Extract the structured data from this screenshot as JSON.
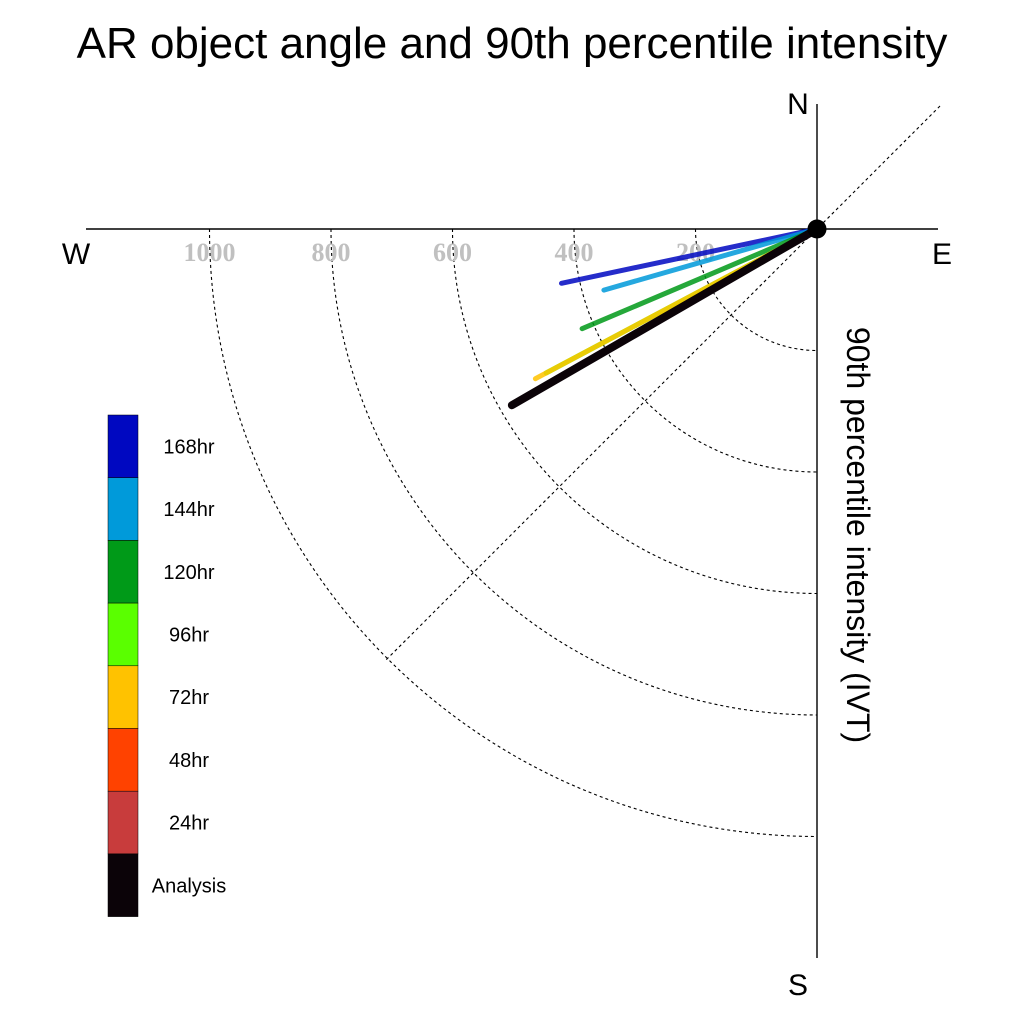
{
  "chart_data": {
    "type": "polar-vector",
    "title": "AR object angle and 90th percentile intensity",
    "ylabel": "90th percentile intensity (IVT)",
    "compass": {
      "north": "N",
      "south": "S",
      "east": "E",
      "west": "W"
    },
    "radial_ticks": [
      "200",
      "400",
      "600",
      "800",
      "1000"
    ],
    "rlim": [
      0,
      1200
    ],
    "grid": "dashed quarter circles at 200, 400, 600, 800, 1000 and diagonal guides",
    "legend_placement": "left",
    "series": [
      {
        "name": "168hr",
        "color": "#0008c1",
        "angle_deg": 192,
        "intensity": 430
      },
      {
        "name": "144hr",
        "color": "#009ada",
        "angle_deg": 196,
        "intensity": 365
      },
      {
        "name": "120hr",
        "color": "#009a18",
        "angle_deg": 203,
        "intensity": 420
      },
      {
        "name": "96hr",
        "color": "#5aff00",
        "angle_deg": 208,
        "intensity": 505
      },
      {
        "name": "72hr",
        "color": "#ffc200",
        "angle_deg": 208,
        "intensity": 525
      },
      {
        "name": "48hr",
        "color": "#ff4200",
        "angle_deg": 210,
        "intensity": 545
      },
      {
        "name": "24hr",
        "color": "#c83c3c",
        "angle_deg": 210,
        "intensity": 560
      },
      {
        "name": "Analysis",
        "color": "#0b0308",
        "angle_deg": 210,
        "intensity": 580
      }
    ]
  }
}
